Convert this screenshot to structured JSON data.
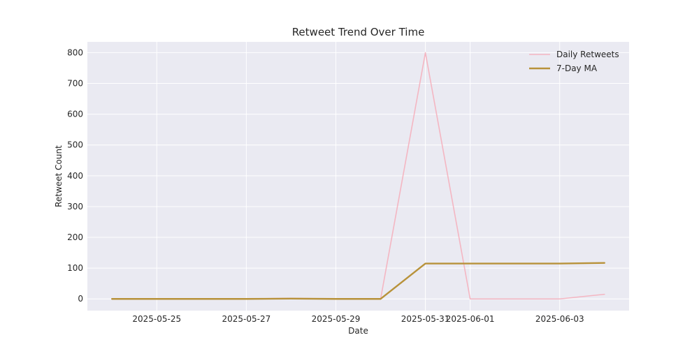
{
  "chart_data": {
    "type": "line",
    "title": "Retweet Trend Over Time",
    "xlabel": "Date",
    "ylabel": "Retweet Count",
    "x": [
      "2025-05-24",
      "2025-05-25",
      "2025-05-26",
      "2025-05-27",
      "2025-05-28",
      "2025-05-29",
      "2025-05-30",
      "2025-05-31",
      "2025-06-01",
      "2025-06-02",
      "2025-06-03",
      "2025-06-04"
    ],
    "x_tick_labels": [
      "2025-05-25",
      "2025-05-27",
      "2025-05-29",
      "2025-05-31",
      "2025-06-01",
      "2025-06-03"
    ],
    "ylim": [
      -38,
      835
    ],
    "y_ticks": [
      0,
      100,
      200,
      300,
      400,
      500,
      600,
      700,
      800
    ],
    "grid": true,
    "legend_position": "top-right",
    "series": [
      {
        "name": "Daily Retweets",
        "values": [
          0,
          0,
          0,
          0,
          2,
          0,
          0,
          800,
          0,
          0,
          0,
          15
        ],
        "color": "#f4b6c2",
        "line_width": 1.6
      },
      {
        "name": "7-Day MA",
        "values": [
          0,
          0,
          0,
          0,
          1,
          0,
          0,
          115,
          115,
          115,
          115,
          117
        ],
        "color": "#b8923a",
        "line_width": 2.4
      }
    ],
    "colors": {
      "plot_background": "#eaeaf2",
      "grid": "#ffffff"
    }
  }
}
